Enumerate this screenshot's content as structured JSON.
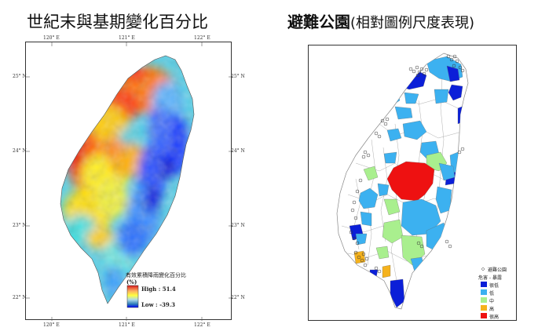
{
  "titles": {
    "left": "世紀末與基期變化百分比",
    "right_main": "避難公園",
    "right_paren": "(相對圖例尺度表現)"
  },
  "left_map": {
    "top_ticks": [
      "120° E",
      "121° E",
      "122° E"
    ],
    "bottom_ticks": [
      "120° E",
      "121° E",
      "122° E"
    ],
    "left_ticks": [
      "25° N",
      "24° N",
      "23° N",
      "22° N"
    ],
    "right_ticks": [
      "25° N",
      "24° N",
      "23° N",
      "22° N"
    ],
    "legend": {
      "title": "有效累積降雨變化百分比",
      "unit": "(%)",
      "high": "High : 51.4",
      "low": "Low : -39.3",
      "high_value": 51.4,
      "low_value": -39.3,
      "gradient": [
        "#d7191c",
        "#fdae61",
        "#ffff40",
        "#abd9e9",
        "#2c7bb6",
        "#0000ff"
      ]
    }
  },
  "right_map": {
    "legend": {
      "header": "避難公園",
      "subheader": "危害 - 暴露",
      "items": [
        {
          "label": "很低",
          "color": "#0b1fd8"
        },
        {
          "label": "低",
          "color": "#3cb1f0"
        },
        {
          "label": "中",
          "color": "#a9ef8e"
        },
        {
          "label": "高",
          "color": "#f5b21c"
        },
        {
          "label": "很高",
          "color": "#ee1111"
        }
      ]
    }
  }
}
